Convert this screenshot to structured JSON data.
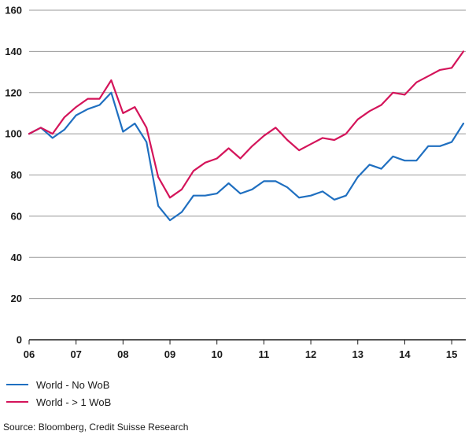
{
  "chart_data": {
    "type": "line",
    "x_tick_labels": [
      "06",
      "07",
      "08",
      "09",
      "10",
      "11",
      "12",
      "13",
      "14",
      "15"
    ],
    "ylim": [
      0,
      160
    ],
    "y_ticks": [
      0,
      20,
      40,
      60,
      80,
      100,
      120,
      140,
      160
    ],
    "grid": "horizontal",
    "legend_placement": "bottom-left",
    "series": [
      {
        "name": "World - No WoB",
        "color": "#1f6fc0",
        "x": [
          2006.0,
          2006.25,
          2006.5,
          2006.75,
          2007.0,
          2007.25,
          2007.5,
          2007.75,
          2008.0,
          2008.25,
          2008.5,
          2008.75,
          2009.0,
          2009.25,
          2009.5,
          2009.75,
          2010.0,
          2010.25,
          2010.5,
          2010.75,
          2011.0,
          2011.25,
          2011.5,
          2011.75,
          2012.0,
          2012.25,
          2012.5,
          2012.75,
          2013.0,
          2013.25,
          2013.5,
          2013.75,
          2014.0,
          2014.25,
          2014.5,
          2014.75,
          2015.0,
          2015.25
        ],
        "values": [
          100,
          103,
          98,
          102,
          109,
          112,
          114,
          120,
          101,
          105,
          96,
          65,
          58,
          62,
          70,
          70,
          71,
          76,
          71,
          73,
          77,
          77,
          74,
          69,
          70,
          72,
          68,
          70,
          79,
          85,
          83,
          89,
          87,
          87,
          94,
          94,
          96,
          105
        ]
      },
      {
        "name": "World - > 1 WoB",
        "color": "#d4145a",
        "x": [
          2006.0,
          2006.25,
          2006.5,
          2006.75,
          2007.0,
          2007.25,
          2007.5,
          2007.75,
          2008.0,
          2008.25,
          2008.5,
          2008.75,
          2009.0,
          2009.25,
          2009.5,
          2009.75,
          2010.0,
          2010.25,
          2010.5,
          2010.75,
          2011.0,
          2011.25,
          2011.5,
          2011.75,
          2012.0,
          2012.25,
          2012.5,
          2012.75,
          2013.0,
          2013.25,
          2013.5,
          2013.75,
          2014.0,
          2014.25,
          2014.5,
          2014.75,
          2015.0,
          2015.25
        ],
        "values": [
          100,
          103,
          100,
          108,
          113,
          117,
          117,
          126,
          110,
          113,
          103,
          79,
          69,
          73,
          82,
          86,
          88,
          93,
          88,
          94,
          99,
          103,
          97,
          92,
          95,
          98,
          97,
          100,
          107,
          111,
          114,
          120,
          119,
          125,
          128,
          131,
          132,
          140
        ]
      }
    ]
  },
  "source_note": "Source: Bloomberg, Credit Suisse Research"
}
